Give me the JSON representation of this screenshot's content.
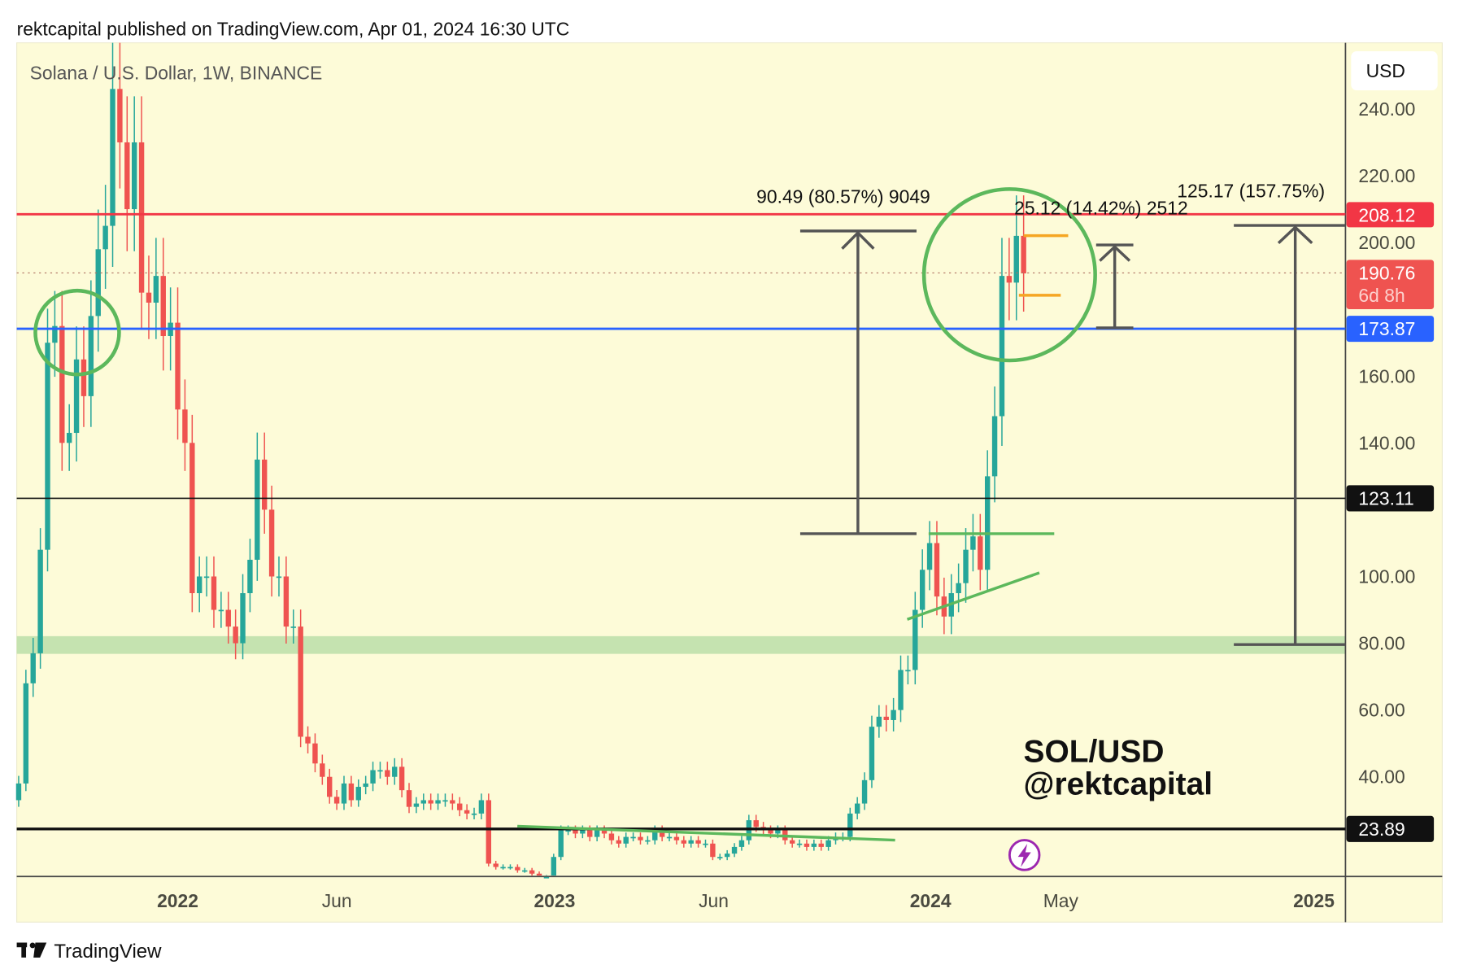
{
  "header": {
    "published": "rektcapital published on TradingView.com, Apr 01, 2024 16:30 UTC"
  },
  "symbol_label": "Solana / U.S. Dollar, 1W, BINANCE",
  "currency_button": "USD",
  "watermark": {
    "line1": "SOL/USD",
    "line2": "@rektcapital"
  },
  "footer": {
    "brand": "TradingView"
  },
  "icons": {
    "alert": "lightning-icon",
    "logo": "tradingview-logo-icon"
  },
  "colors": {
    "background": "#fdfbd8",
    "up": "#26a69a",
    "down": "#ef5350",
    "resistance": "#f23645",
    "support_blue": "#2962ff",
    "annotation_green": "#5cb85c",
    "orange": "#f5a623",
    "zone": "#c5e3b0"
  },
  "price_axis": {
    "ticks": [
      "240.00",
      "220.00",
      "200.00",
      "160.00",
      "140.00",
      "100.00",
      "80.00",
      "60.00",
      "40.00"
    ],
    "tick_values": [
      240,
      220,
      200,
      160,
      140,
      100,
      80,
      60,
      40
    ]
  },
  "labels": {
    "resistance": {
      "value": "208.12",
      "price": 208.12
    },
    "last_price": {
      "value": "190.76",
      "countdown": "6d 8h",
      "price": 190.76
    },
    "support_blue": {
      "value": "173.87",
      "price": 173.87
    },
    "level_black": {
      "value": "123.11",
      "price": 123.11
    },
    "level_low": {
      "value": "23.89",
      "price": 23.89
    }
  },
  "measurements": [
    {
      "text": "90.49 (80.57%) 9049",
      "from": 111.5,
      "to": 202
    },
    {
      "text": "25.12 (14.42%) 2512",
      "from": 174,
      "to": 198
    },
    {
      "text": "125.17 (157.75%)",
      "from": 79,
      "to": 205
    }
  ],
  "chart_data": {
    "type": "candlestick",
    "title": "Solana / U.S. Dollar, 1W, BINANCE",
    "interval": "1W",
    "first_week": "2021-08-02",
    "x_ticks": [
      "2022",
      "Jun",
      "2023",
      "Jun",
      "2024",
      "May",
      "2025"
    ],
    "ylim": [
      8,
      260
    ],
    "open_first": 33,
    "close": [
      38,
      68,
      77,
      108,
      170,
      175,
      140,
      143,
      165,
      154,
      178,
      198,
      205,
      246,
      230,
      210,
      230,
      185,
      182,
      190,
      172,
      176,
      150,
      140,
      95,
      100,
      100,
      90,
      90,
      85,
      80,
      95,
      105,
      135,
      120,
      100,
      100,
      85,
      85,
      52,
      50,
      44,
      40,
      34,
      32,
      38,
      33,
      37,
      38,
      42,
      42,
      40,
      43,
      36,
      31,
      32,
      33,
      32,
      33,
      33,
      32,
      30,
      29,
      29,
      33,
      14,
      13,
      13,
      13,
      12,
      12,
      11,
      10,
      10,
      16,
      24,
      24,
      23,
      24,
      22,
      24,
      23,
      21,
      20,
      22,
      22,
      21,
      21,
      24,
      22,
      22,
      21,
      20,
      21,
      20,
      20,
      16,
      16,
      17,
      19,
      21,
      27,
      25,
      24,
      23,
      24,
      21,
      20,
      20,
      19,
      20,
      19,
      21,
      22,
      22,
      29,
      32,
      39,
      55,
      58,
      57,
      60,
      72,
      72,
      90,
      102,
      110,
      94,
      88,
      95,
      98,
      108,
      112,
      102,
      130,
      148,
      190,
      188,
      202,
      190.76
    ],
    "grid": false
  }
}
